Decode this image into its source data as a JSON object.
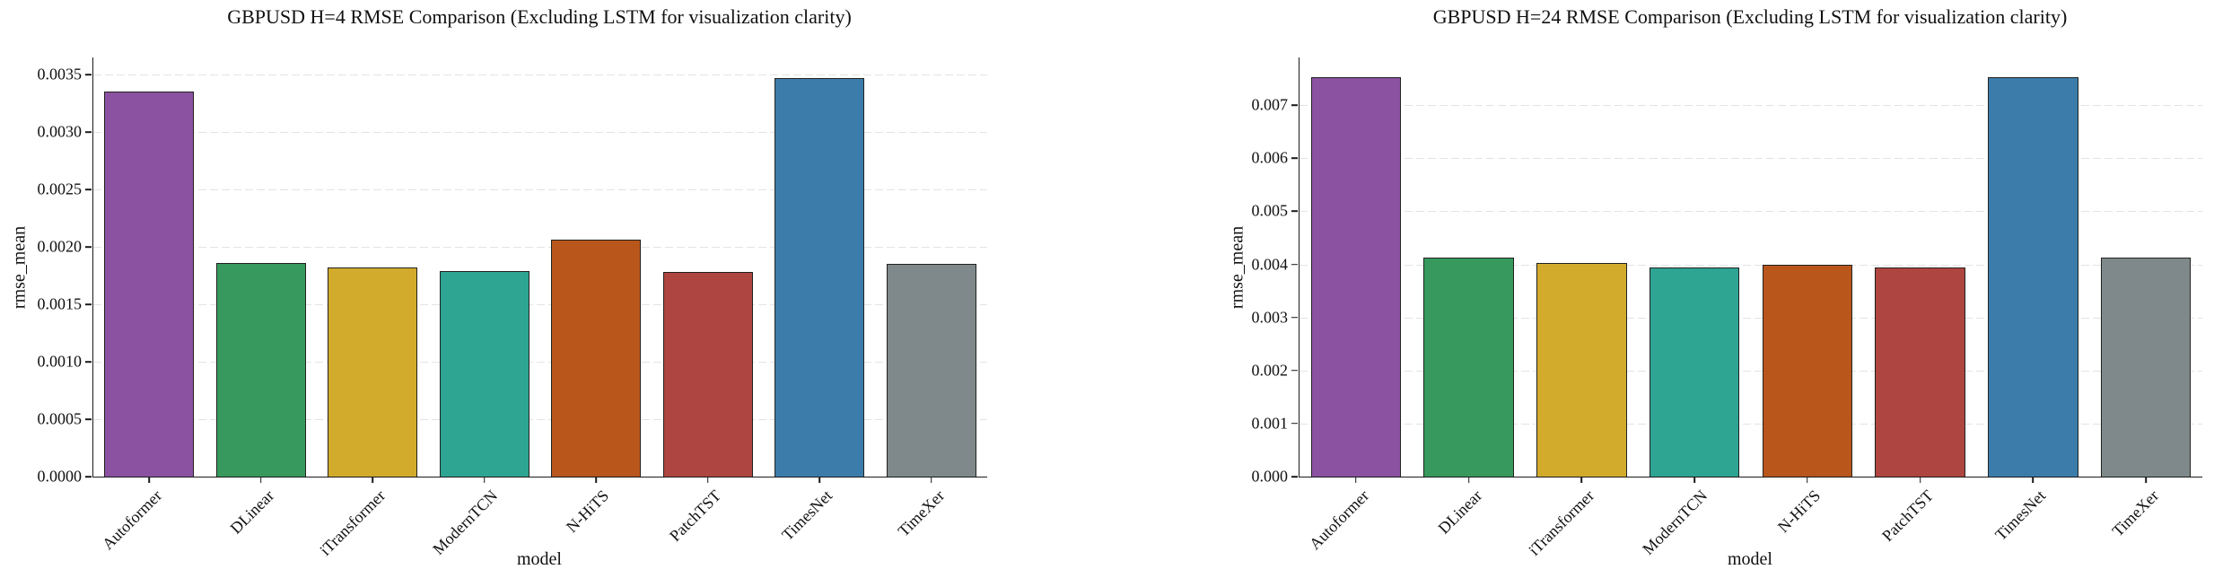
{
  "figure": {
    "background": "#ffffff",
    "text_color": "#111111"
  },
  "chart_data": [
    {
      "type": "bar",
      "title": "GBPUSD H=4 RMSE Comparison (Excluding LSTM for visualization clarity)",
      "xlabel": "model",
      "ylabel": "rmse_mean",
      "categories": [
        "Autoformer",
        "DLinear",
        "iTransformer",
        "ModernTCN",
        "N-HiTS",
        "PatchTST",
        "TimesNet",
        "TimeXer"
      ],
      "values": [
        0.00335,
        0.00186,
        0.00182,
        0.00179,
        0.00206,
        0.00178,
        0.00347,
        0.00185
      ],
      "bar_colors": [
        "#8b52a1",
        "#37995d",
        "#d2ab2d",
        "#2ea493",
        "#b8561c",
        "#ae4540",
        "#3c7cab",
        "#7f898b"
      ],
      "ylim": [
        0,
        0.00365
      ],
      "yticks": [
        0,
        0.0005,
        0.001,
        0.0015,
        0.002,
        0.0025,
        0.003,
        0.0035
      ],
      "ytick_labels": [
        "0.0000",
        "0.0005",
        "0.0010",
        "0.0015",
        "0.0020",
        "0.0025",
        "0.0030",
        "0.0035"
      ],
      "grid": "horizontal-dashed",
      "legend": "none"
    },
    {
      "type": "bar",
      "title": "GBPUSD H=24 RMSE Comparison (Excluding LSTM for visualization clarity)",
      "xlabel": "model",
      "ylabel": "rmse_mean",
      "categories": [
        "Autoformer",
        "DLinear",
        "iTransformer",
        "ModernTCN",
        "N-HiTS",
        "PatchTST",
        "TimesNet",
        "TimeXer"
      ],
      "values": [
        0.00752,
        0.00413,
        0.00403,
        0.00395,
        0.004,
        0.00394,
        0.00753,
        0.00412
      ],
      "bar_colors": [
        "#8b52a1",
        "#37995d",
        "#d2ab2d",
        "#2ea493",
        "#b8561c",
        "#ae4540",
        "#3c7cab",
        "#7f898b"
      ],
      "ylim": [
        0,
        0.0079
      ],
      "yticks": [
        0,
        0.001,
        0.002,
        0.003,
        0.004,
        0.005,
        0.006,
        0.007
      ],
      "ytick_labels": [
        "0.000",
        "0.001",
        "0.002",
        "0.003",
        "0.004",
        "0.005",
        "0.006",
        "0.007"
      ],
      "grid": "horizontal-dashed",
      "legend": "none"
    }
  ]
}
